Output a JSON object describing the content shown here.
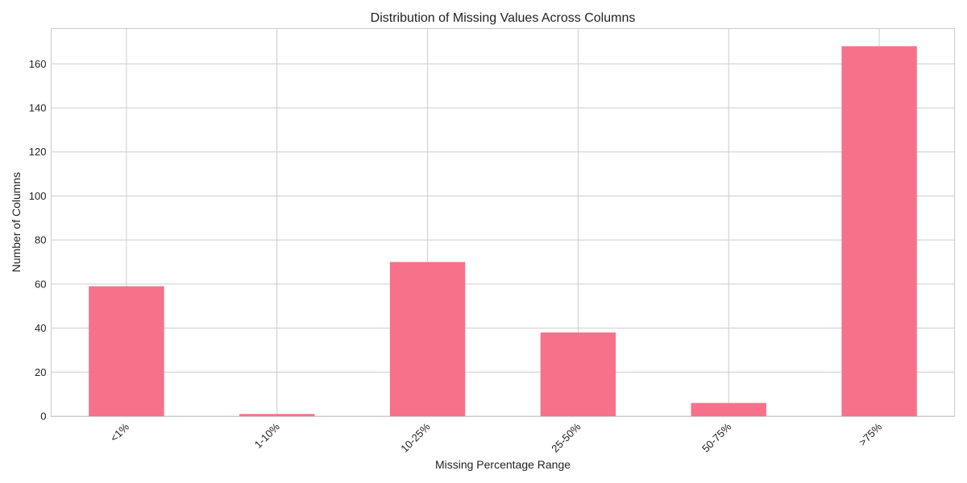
{
  "chart_data": {
    "type": "bar",
    "title": "Distribution of Missing Values Across Columns",
    "xlabel": "Missing Percentage Range",
    "ylabel": "Number of Columns",
    "categories": [
      "<1%",
      "1-10%",
      "10-25%",
      "25-50%",
      "50-75%",
      ">75%"
    ],
    "values": [
      59,
      1,
      70,
      38,
      6,
      168
    ],
    "ylim": [
      0,
      176
    ],
    "yticks": [
      0,
      20,
      40,
      60,
      80,
      100,
      120,
      140,
      160
    ],
    "grid": true,
    "bar_color": "#f7718a",
    "grid_color": "#cccccc"
  }
}
